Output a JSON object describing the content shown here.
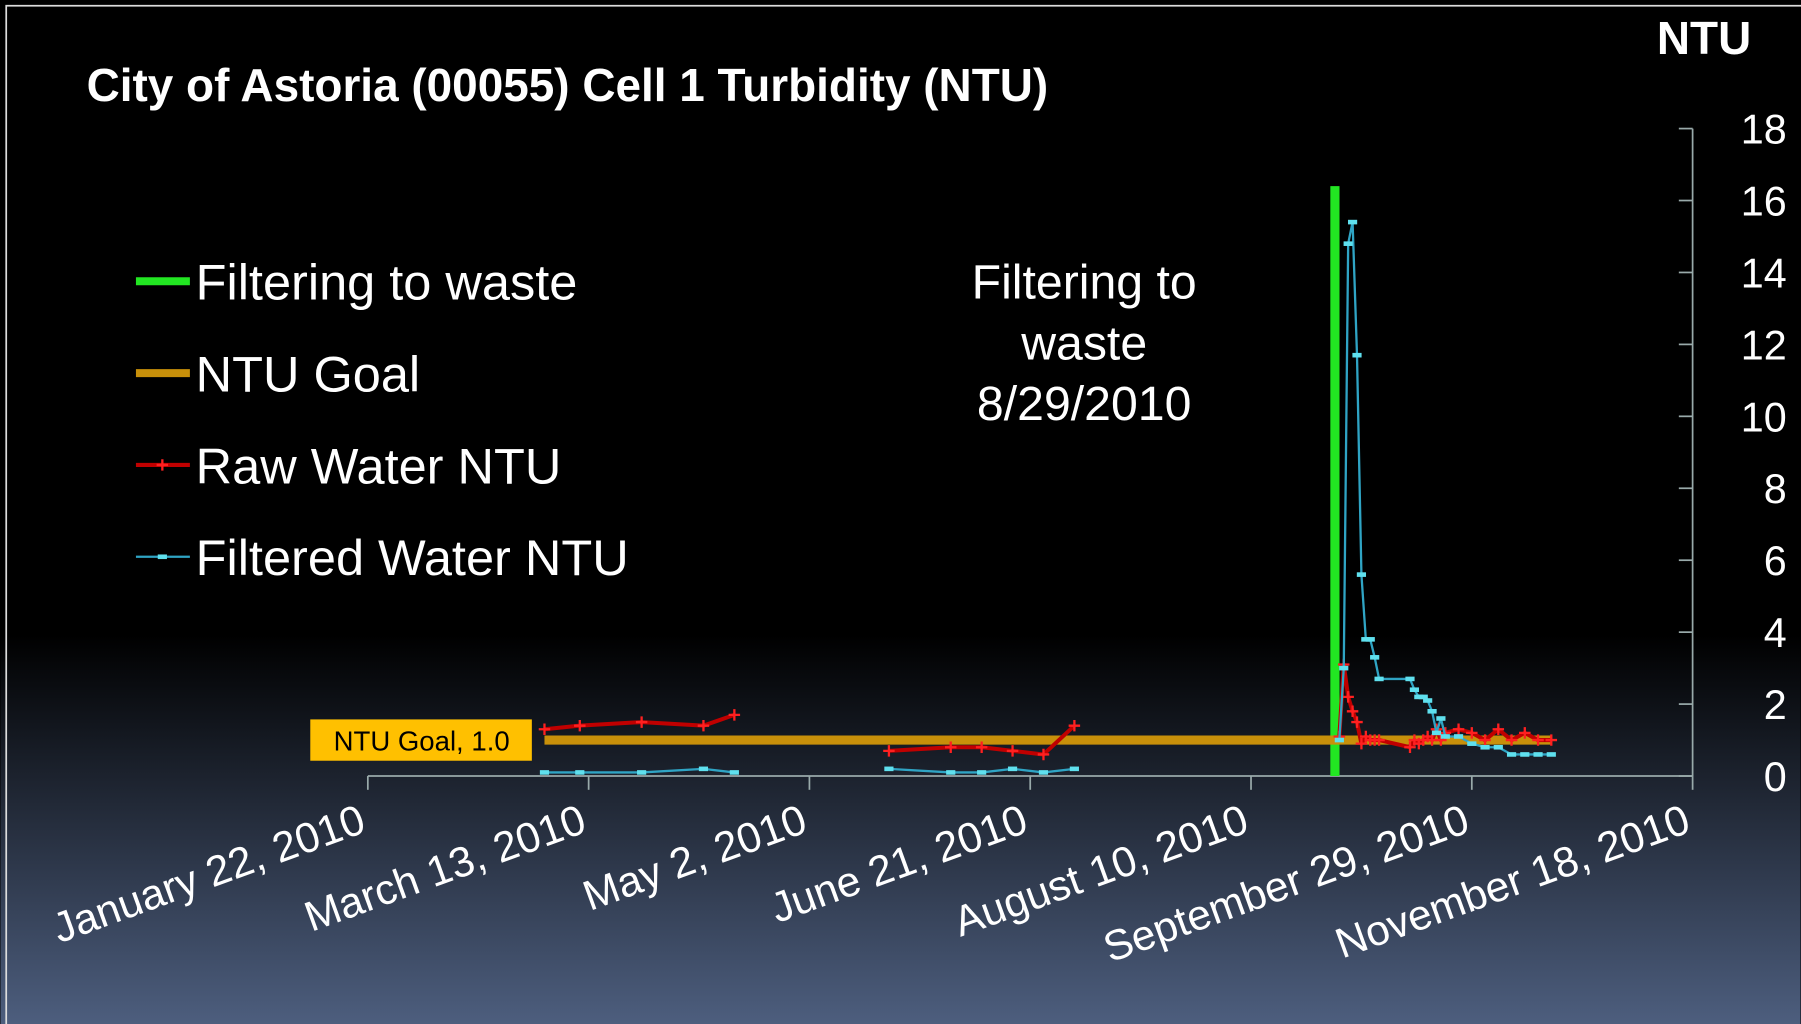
{
  "chart_data": {
    "type": "line",
    "title": "City of Astoria (00055) Cell 1 Turbidity (NTU)",
    "y_axis_label": "NTU",
    "y_axis_side": "right",
    "annotation": [
      "Filtering to",
      "waste",
      "8/29/2010"
    ],
    "legend": "upper left",
    "xlim": [
      "2010-01-22",
      "2010-11-18"
    ],
    "xticks": [
      {
        "value": "2010-01-22",
        "label": "January 22, 2010"
      },
      {
        "value": "2010-03-13",
        "label": "March 13, 2010"
      },
      {
        "value": "2010-05-02",
        "label": "May 2, 2010"
      },
      {
        "value": "2010-06-21",
        "label": "June 21, 2010"
      },
      {
        "value": "2010-08-10",
        "label": "August 10, 2010"
      },
      {
        "value": "2010-09-29",
        "label": "September 29, 2010"
      },
      {
        "value": "2010-11-18",
        "label": "November 18, 2010"
      }
    ],
    "ylim": [
      0,
      18
    ],
    "yticks": [
      0,
      2,
      4,
      6,
      8,
      10,
      12,
      14,
      16,
      18
    ],
    "x": [
      "2010-03-03",
      "2010-03-11",
      "2010-03-25",
      "2010-04-08",
      "2010-04-15",
      "2010-04-30",
      "2010-05-20",
      "2010-06-03",
      "2010-06-10",
      "2010-06-17",
      "2010-06-24",
      "2010-07-01",
      "2010-08-01",
      "2010-08-30",
      "2010-08-31",
      "2010-09-01",
      "2010-09-02",
      "2010-09-03",
      "2010-09-04",
      "2010-09-05",
      "2010-09-06",
      "2010-09-07",
      "2010-09-08",
      "2010-09-15",
      "2010-09-16",
      "2010-09-17",
      "2010-09-18",
      "2010-09-19",
      "2010-09-20",
      "2010-09-21",
      "2010-09-22",
      "2010-09-23",
      "2010-09-26",
      "2010-09-29",
      "2010-10-02",
      "2010-10-05",
      "2010-10-08",
      "2010-10-11",
      "2010-10-14",
      "2010-10-17"
    ],
    "series": [
      {
        "name": "Filtering to waste",
        "color": "#22e622",
        "marker": "none",
        "x": [
          "2010-08-29",
          "2010-08-29"
        ],
        "values": [
          0,
          16.4
        ]
      },
      {
        "name": "NTU Goal",
        "color": "#c8900a",
        "marker": "none",
        "label": "NTU Goal, 1.0",
        "x": [
          "2010-03-03",
          "2010-10-17"
        ],
        "values": [
          1.0,
          1.0
        ]
      },
      {
        "name": "Raw Water NTU",
        "color": "#c00000",
        "marker": "plus",
        "values": [
          1.3,
          1.4,
          1.5,
          1.4,
          1.7,
          null,
          0.7,
          0.8,
          0.8,
          0.7,
          0.6,
          1.4,
          null,
          1.1,
          3.1,
          2.2,
          1.8,
          1.5,
          0.9,
          1.1,
          1.0,
          1.0,
          1.0,
          0.8,
          1.0,
          0.9,
          1.0,
          1.1,
          1.0,
          1.3,
          1.0,
          1.2,
          1.3,
          1.2,
          1.0,
          1.3,
          1.0,
          1.2,
          1.0,
          1.0
        ]
      },
      {
        "name": "Filtered Water NTU",
        "color": "#2fa4c4",
        "marker": "dash",
        "values": [
          0.1,
          0.1,
          0.1,
          0.2,
          0.1,
          null,
          0.2,
          0.1,
          0.1,
          0.2,
          0.1,
          0.2,
          null,
          1.0,
          3.0,
          14.8,
          15.4,
          11.7,
          5.6,
          3.8,
          3.8,
          3.3,
          2.7,
          2.7,
          2.4,
          2.2,
          2.2,
          2.1,
          1.8,
          1.2,
          1.6,
          1.1,
          1.1,
          0.9,
          0.8,
          0.8,
          0.6,
          0.6,
          0.6,
          0.6
        ]
      }
    ]
  }
}
